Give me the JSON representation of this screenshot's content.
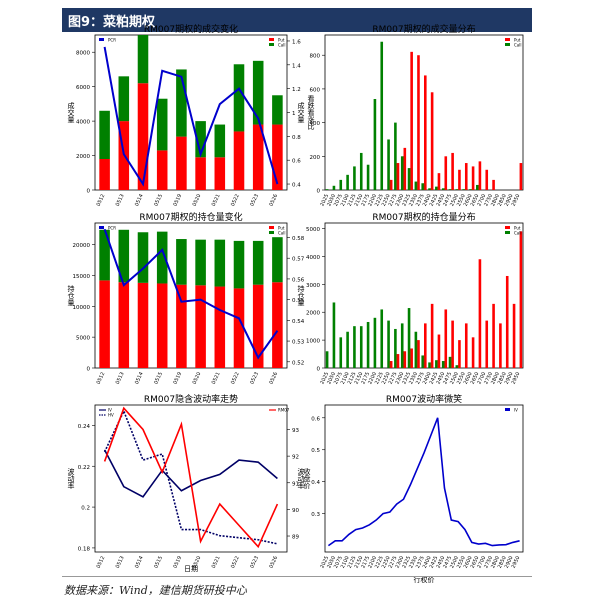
{
  "header": {
    "title": "图9：菜粕期权"
  },
  "source": "数据来源：Wind，建信期货研投中心",
  "colors": {
    "red": "#ff0000",
    "green": "#008000",
    "blue": "#0000cc",
    "navy": "#000066",
    "brown": "#7a4a00"
  },
  "chart_data": [
    {
      "type": "bar",
      "title": "RM007期权的成交变化",
      "ylabel": "成交量",
      "y2label": "看跌看涨比",
      "categories": [
        "0512",
        "0513",
        "0514",
        "0515",
        "0519",
        "0520",
        "0521",
        "0522",
        "0523",
        "0526"
      ],
      "series": [
        {
          "name": "Call",
          "values": [
            2800,
            2600,
            2800,
            3000,
            3900,
            2100,
            1900,
            3900,
            3700,
            1700
          ],
          "color": "#008000"
        },
        {
          "name": "Put",
          "values": [
            1800,
            4000,
            6200,
            2300,
            3100,
            1900,
            1900,
            3400,
            3800,
            3800
          ],
          "color": "#ff0000"
        },
        {
          "name": "PCR",
          "values": [
            1.55,
            0.65,
            0.4,
            1.35,
            1.3,
            0.65,
            1.07,
            1.2,
            0.95,
            0.4
          ],
          "color": "#0000cc",
          "axis": "right"
        }
      ],
      "ylim": [
        0,
        9000
      ],
      "yticks": [
        0,
        2000,
        4000,
        6000,
        8000
      ],
      "y2lim": [
        0.35,
        1.65
      ],
      "y2ticks": [
        0.4,
        0.6,
        0.8,
        1.0,
        1.2,
        1.4,
        1.6
      ]
    },
    {
      "type": "bar",
      "title": "RM007期权的成交量分布",
      "ylabel": "成交量",
      "categories": [
        "2025",
        "2050",
        "2075",
        "2100",
        "2125",
        "2150",
        "2175",
        "2200",
        "2225",
        "2250",
        "2275",
        "2300",
        "2325",
        "2350",
        "2375",
        "2400",
        "2425",
        "2450",
        "2475",
        "2500",
        "2550",
        "2600",
        "2650",
        "2700",
        "2750",
        "2800",
        "2850",
        "2900",
        "2950"
      ],
      "series": [
        {
          "name": "Call",
          "values": [
            5,
            25,
            60,
            90,
            140,
            220,
            150,
            540,
            880,
            300,
            400,
            200,
            130,
            50,
            40,
            10,
            20,
            10,
            5,
            5,
            5,
            5,
            30,
            0,
            0,
            0,
            0,
            0,
            0
          ],
          "color": "#008000"
        },
        {
          "name": "Put",
          "values": [
            0,
            0,
            0,
            0,
            0,
            0,
            0,
            0,
            0,
            60,
            160,
            250,
            820,
            800,
            680,
            580,
            100,
            200,
            220,
            120,
            160,
            140,
            170,
            120,
            60,
            0,
            0,
            0,
            160
          ],
          "color": "#ff0000"
        }
      ],
      "ylim": [
        0,
        920
      ],
      "yticks": [
        0,
        200,
        400,
        600,
        800
      ]
    },
    {
      "type": "bar",
      "title": "RM007期权的持仓量变化",
      "ylabel": "持仓量",
      "categories": [
        "0512",
        "0513",
        "0514",
        "0515",
        "0519",
        "0520",
        "0521",
        "0522",
        "0523",
        "0526"
      ],
      "series": [
        {
          "name": "Call",
          "values": [
            8200,
            8500,
            8200,
            8400,
            7400,
            7400,
            7600,
            7700,
            7100,
            7300
          ],
          "color": "#008000"
        },
        {
          "name": "Put",
          "values": [
            14200,
            13900,
            13800,
            13700,
            13500,
            13400,
            13200,
            12900,
            13500,
            13900
          ],
          "color": "#ff0000"
        },
        {
          "name": "PCR",
          "values": [
            0.584,
            0.557,
            0.565,
            0.574,
            0.549,
            0.55,
            0.545,
            0.541,
            0.522,
            0.535
          ],
          "color": "#0000cc",
          "axis": "right"
        }
      ],
      "ylim": [
        0,
        23500
      ],
      "yticks": [
        0,
        5000,
        10000,
        15000,
        20000
      ],
      "y2lim": [
        0.517,
        0.587
      ],
      "y2ticks": [
        0.52,
        0.53,
        0.54,
        0.55,
        0.56,
        0.57,
        0.58
      ]
    },
    {
      "type": "bar",
      "title": "RM007期权的持仓量分布",
      "ylabel": "持仓量",
      "categories": [
        "2025",
        "2050",
        "2075",
        "2100",
        "2125",
        "2150",
        "2175",
        "2200",
        "2225",
        "2250",
        "2275",
        "2300",
        "2325",
        "2350",
        "2375",
        "2400",
        "2425",
        "2450",
        "2475",
        "2500",
        "2550",
        "2600",
        "2650",
        "2700",
        "2750",
        "2800",
        "2850",
        "2900",
        "2950"
      ],
      "series": [
        {
          "name": "Call",
          "values": [
            600,
            2350,
            1100,
            1300,
            1500,
            1500,
            1650,
            1800,
            2100,
            1700,
            1400,
            1600,
            2150,
            1300,
            450,
            200,
            280,
            250,
            400,
            100,
            0,
            0,
            0,
            0,
            0,
            0,
            0,
            0,
            0
          ],
          "color": "#008000"
        },
        {
          "name": "Put",
          "values": [
            0,
            0,
            0,
            0,
            0,
            0,
            0,
            0,
            0,
            250,
            500,
            600,
            700,
            1000,
            1600,
            2300,
            1200,
            2100,
            1700,
            1000,
            1600,
            1100,
            3900,
            1700,
            2300,
            1600,
            3300,
            2300,
            4900
          ],
          "color": "#ff0000"
        }
      ],
      "ylim": [
        0,
        5200
      ],
      "yticks": [
        0,
        1000,
        2000,
        3000,
        4000,
        5000
      ]
    },
    {
      "type": "line",
      "title": "RM007隐含波动率走势",
      "xlabel": "日期",
      "ylabel": "波动率",
      "y2label": "收盘价",
      "categories": [
        "0512",
        "0513",
        "0514",
        "0515",
        "0519",
        "0520",
        "0521",
        "0522",
        "0523",
        "0526"
      ],
      "series": [
        {
          "name": "IV",
          "values": [
            0.228,
            0.21,
            0.205,
            0.218,
            0.208,
            0.213,
            0.216,
            0.223,
            0.222,
            0.214
          ],
          "color": "#000066",
          "style": "solid",
          "axis": "left"
        },
        {
          "name": "HV",
          "values": [
            0.227,
            0.247,
            0.223,
            0.226,
            0.189,
            0.189,
            0.186,
            0.185,
            0.184,
            0.182
          ],
          "color": "#000066",
          "style": "dotted",
          "axis": "left"
        },
        {
          "name": "RM07",
          "values": [
            2920,
            2970,
            2950,
            2910,
            2955,
            2845,
            2880,
            2860,
            2840,
            2880
          ],
          "color": "#ff0000",
          "style": "solid",
          "axis": "right"
        }
      ],
      "ylim": [
        0.178,
        0.25
      ],
      "yticks": [
        0.18,
        0.2,
        0.22,
        0.24
      ],
      "y2lim": [
        2835,
        2973
      ],
      "y2ticks": [
        2850,
        2875,
        2900,
        2925,
        2950
      ],
      "y2ticklabels": [
        "89",
        "90",
        "91",
        "92",
        "93"
      ]
    },
    {
      "type": "line",
      "title": "RM007波动率微笑",
      "xlabel": "行权价",
      "ylabel": "波动率",
      "categories": [
        "2025",
        "2050",
        "2075",
        "2100",
        "2125",
        "2150",
        "2175",
        "2200",
        "2225",
        "2250",
        "2275",
        "2300",
        "2325",
        "2350",
        "2375",
        "2400",
        "2425",
        "2450",
        "2475",
        "2500",
        "2550",
        "2600",
        "2650",
        "2700",
        "2750",
        "2800",
        "2850",
        "2900",
        "2950"
      ],
      "series": [
        {
          "name": "IV",
          "values": [
            0.2,
            0.215,
            0.215,
            0.235,
            0.25,
            0.255,
            0.265,
            0.28,
            0.3,
            0.305,
            0.33,
            0.345,
            0.39,
            0.44,
            0.49,
            0.545,
            0.6,
            0.38,
            0.28,
            0.275,
            0.25,
            0.21,
            0.205,
            0.207,
            0.2,
            0.202,
            0.203,
            0.21,
            0.215
          ],
          "color": "#0000cc"
        }
      ],
      "ylim": [
        0.18,
        0.64
      ],
      "yticks": [
        0.3,
        0.4,
        0.5,
        0.6
      ]
    }
  ]
}
